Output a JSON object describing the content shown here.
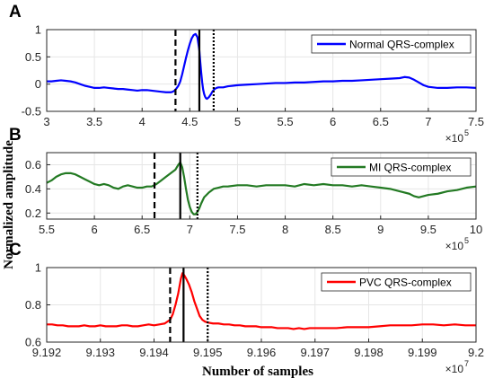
{
  "figure": {
    "ylabel": "Normalized amplitude",
    "xlabel": "Number of samples"
  },
  "chart_data": [
    {
      "panel": "A",
      "type": "line",
      "series": [
        {
          "name": "Normal QRS-complex",
          "color": "#0000ff",
          "x": [
            300000,
            305000,
            310000,
            315000,
            320000,
            325000,
            330000,
            335000,
            340000,
            345000,
            350000,
            355000,
            360000,
            365000,
            370000,
            375000,
            380000,
            385000,
            390000,
            395000,
            400000,
            405000,
            410000,
            415000,
            420000,
            425000,
            430000,
            432000,
            434000,
            436000,
            438000,
            440000,
            442000,
            444000,
            446000,
            448000,
            450000,
            452000,
            454000,
            456000,
            458000,
            460000,
            461000,
            462000,
            463000,
            464000,
            465000,
            466000,
            467000,
            468000,
            470000,
            472000,
            474000,
            476000,
            478000,
            480000,
            485000,
            490000,
            495000,
            500000,
            510000,
            520000,
            530000,
            540000,
            550000,
            560000,
            570000,
            580000,
            590000,
            600000,
            610000,
            620000,
            630000,
            640000,
            650000,
            660000,
            670000,
            675000,
            680000,
            685000,
            690000,
            695000,
            700000,
            710000,
            720000,
            730000,
            740000,
            750000
          ],
          "y": [
            0.05,
            0.05,
            0.06,
            0.07,
            0.06,
            0.05,
            0.03,
            0.0,
            -0.03,
            -0.05,
            -0.07,
            -0.07,
            -0.06,
            -0.07,
            -0.08,
            -0.09,
            -0.09,
            -0.1,
            -0.11,
            -0.12,
            -0.11,
            -0.11,
            -0.12,
            -0.13,
            -0.14,
            -0.15,
            -0.15,
            -0.14,
            -0.12,
            -0.08,
            -0.03,
            0.05,
            0.18,
            0.33,
            0.48,
            0.62,
            0.74,
            0.84,
            0.9,
            0.92,
            0.86,
            0.62,
            0.4,
            0.2,
            0.03,
            -0.1,
            -0.18,
            -0.23,
            -0.26,
            -0.27,
            -0.24,
            -0.19,
            -0.13,
            -0.09,
            -0.07,
            -0.06,
            -0.06,
            -0.04,
            -0.03,
            -0.02,
            -0.01,
            0.0,
            0.01,
            0.02,
            0.02,
            0.03,
            0.03,
            0.04,
            0.05,
            0.05,
            0.06,
            0.06,
            0.07,
            0.08,
            0.09,
            0.1,
            0.11,
            0.13,
            0.12,
            0.08,
            0.03,
            -0.02,
            -0.05,
            -0.07,
            -0.07,
            -0.06,
            -0.06,
            -0.07
          ]
        }
      ],
      "markers": {
        "dashed": 435000,
        "solid": 460000,
        "dotted": 475000
      },
      "xlim": [
        300000,
        750000
      ],
      "ylim": [
        -0.5,
        1
      ],
      "xticks": [
        "3",
        "3.5",
        "4",
        "4.5",
        "5",
        "5.5",
        "6",
        "6.5",
        "7",
        "7.5"
      ],
      "yticks": [
        "-0.5",
        "0",
        "0.5",
        "1"
      ],
      "multiplier": {
        "base": "×10",
        "exp": "5"
      }
    },
    {
      "panel": "B",
      "type": "line",
      "series": [
        {
          "name": "MI QRS-complex",
          "color": "#237a23",
          "x": [
            550000,
            555000,
            560000,
            565000,
            570000,
            575000,
            580000,
            585000,
            590000,
            595000,
            600000,
            605000,
            610000,
            615000,
            620000,
            625000,
            630000,
            635000,
            640000,
            645000,
            650000,
            655000,
            660000,
            665000,
            670000,
            675000,
            680000,
            685000,
            688000,
            690000,
            692000,
            694000,
            696000,
            698000,
            700000,
            702000,
            704000,
            706000,
            708000,
            710000,
            712000,
            715000,
            720000,
            725000,
            730000,
            735000,
            740000,
            750000,
            760000,
            770000,
            780000,
            790000,
            800000,
            810000,
            820000,
            830000,
            840000,
            850000,
            860000,
            870000,
            880000,
            890000,
            900000,
            910000,
            920000,
            930000,
            935000,
            940000,
            945000,
            950000,
            960000,
            970000,
            980000,
            990000,
            1000000
          ],
          "y": [
            0.45,
            0.47,
            0.5,
            0.52,
            0.53,
            0.53,
            0.52,
            0.5,
            0.48,
            0.46,
            0.44,
            0.43,
            0.44,
            0.43,
            0.41,
            0.4,
            0.42,
            0.43,
            0.42,
            0.41,
            0.41,
            0.42,
            0.42,
            0.44,
            0.47,
            0.5,
            0.53,
            0.56,
            0.6,
            0.62,
            0.58,
            0.5,
            0.4,
            0.31,
            0.25,
            0.21,
            0.19,
            0.19,
            0.21,
            0.24,
            0.28,
            0.33,
            0.37,
            0.4,
            0.41,
            0.42,
            0.42,
            0.43,
            0.43,
            0.42,
            0.43,
            0.43,
            0.43,
            0.42,
            0.44,
            0.43,
            0.44,
            0.43,
            0.43,
            0.42,
            0.43,
            0.42,
            0.41,
            0.4,
            0.38,
            0.36,
            0.34,
            0.33,
            0.34,
            0.35,
            0.36,
            0.38,
            0.39,
            0.41,
            0.42
          ]
        }
      ],
      "markers": {
        "dashed": 663000,
        "solid": 690000,
        "dotted": 708000
      },
      "xlim": [
        550000,
        1000000
      ],
      "ylim": [
        0.15,
        0.7
      ],
      "xticks": [
        "5.5",
        "6",
        "6.5",
        "7",
        "7.5",
        "8",
        "8.5",
        "9",
        "9.5",
        "10"
      ],
      "yticks": [
        "0.2",
        "0.4",
        "0.6"
      ],
      "multiplier": {
        "base": "×10",
        "exp": "5"
      }
    },
    {
      "panel": "C",
      "type": "line",
      "series": [
        {
          "name": "PVC QRS-complex",
          "color": "#ff0000",
          "x": [
            91920000,
            91921000,
            91922000,
            91923000,
            91924000,
            91925000,
            91926000,
            91927000,
            91928000,
            91929000,
            91930000,
            91931000,
            91932000,
            91933000,
            91934000,
            91935000,
            91936000,
            91937000,
            91938000,
            91939000,
            91940000,
            91941000,
            91942000,
            91943000,
            91943500,
            91944000,
            91944500,
            91945000,
            91945300,
            91945600,
            91946000,
            91946500,
            91947000,
            91947500,
            91948000,
            91948500,
            91949000,
            91949500,
            91950000,
            91951000,
            91952000,
            91953000,
            91954000,
            91955000,
            91956000,
            91957000,
            91958000,
            91959000,
            91960000,
            91961000,
            91962000,
            91963000,
            91964000,
            91965000,
            91966000,
            91967000,
            91968000,
            91969000,
            91970000,
            91972000,
            91974000,
            91976000,
            91978000,
            91980000,
            91982000,
            91984000,
            91986000,
            91988000,
            91990000,
            91992000,
            91994000,
            91996000,
            91998000,
            92000000
          ],
          "y": [
            0.695,
            0.695,
            0.69,
            0.69,
            0.685,
            0.685,
            0.685,
            0.69,
            0.685,
            0.685,
            0.69,
            0.685,
            0.685,
            0.685,
            0.69,
            0.69,
            0.685,
            0.685,
            0.69,
            0.695,
            0.69,
            0.695,
            0.7,
            0.72,
            0.75,
            0.8,
            0.86,
            0.94,
            0.97,
            0.96,
            0.94,
            0.91,
            0.87,
            0.82,
            0.78,
            0.74,
            0.72,
            0.71,
            0.705,
            0.7,
            0.7,
            0.695,
            0.695,
            0.69,
            0.69,
            0.685,
            0.685,
            0.685,
            0.68,
            0.68,
            0.68,
            0.675,
            0.675,
            0.675,
            0.67,
            0.675,
            0.67,
            0.675,
            0.675,
            0.675,
            0.675,
            0.68,
            0.68,
            0.68,
            0.685,
            0.69,
            0.69,
            0.69,
            0.695,
            0.695,
            0.69,
            0.695,
            0.69,
            0.69
          ]
        }
      ],
      "markers": {
        "dashed": 91943000,
        "solid": 91945500,
        "dotted": 91950000
      },
      "xlim": [
        91920000,
        92000000
      ],
      "ylim": [
        0.6,
        1.0
      ],
      "xticks": [
        "9.192",
        "9.193",
        "9.194",
        "9.195",
        "9.196",
        "9.197",
        "9.198",
        "9.199",
        "9.2"
      ],
      "yticks": [
        "0.6",
        "0.8",
        "1"
      ],
      "multiplier": {
        "base": "×10",
        "exp": "7"
      }
    }
  ]
}
